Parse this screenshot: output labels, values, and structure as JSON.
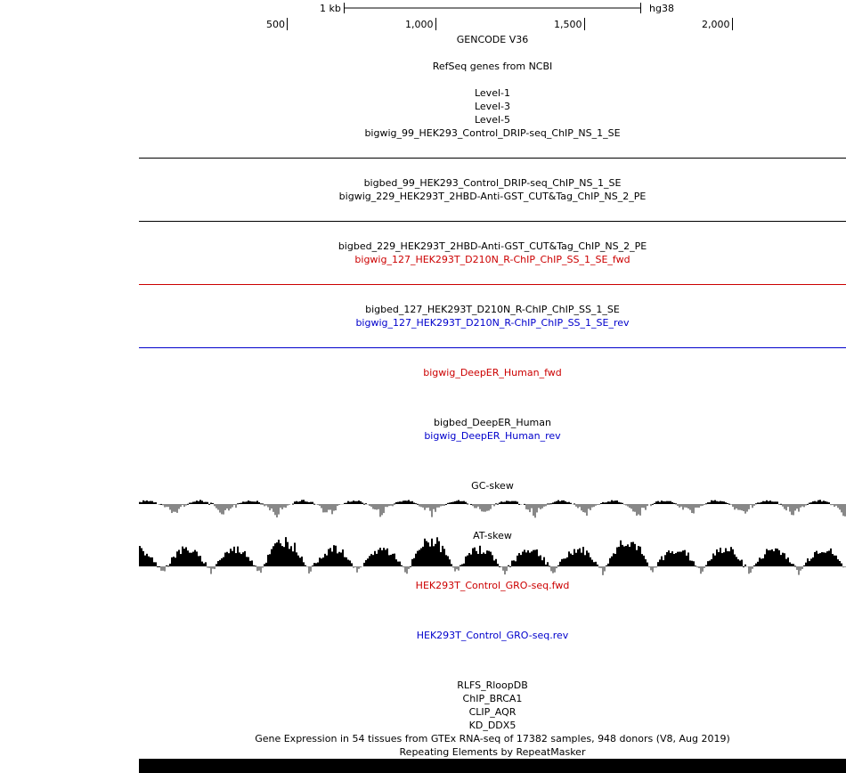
{
  "ruler": {
    "scale_label": "1 kb",
    "assembly": "hg38",
    "ticks": [
      "500",
      "1,000",
      "1,500",
      "2,000"
    ]
  },
  "tracks": [
    {
      "id": "gencode",
      "label": "GENCODE V36"
    },
    {
      "id": "refseq",
      "label": "RefSeq genes from NCBI"
    },
    {
      "id": "level1",
      "label": "Level-1"
    },
    {
      "id": "level3",
      "label": "Level-3"
    },
    {
      "id": "level5",
      "label": "Level-5"
    },
    {
      "id": "bw99",
      "label": "bigwig_99_HEK293_Control_DRIP-seq_ChIP_NS_1_SE"
    },
    {
      "id": "bb99",
      "label": "bigbed_99_HEK293_Control_DRIP-seq_ChIP_NS_1_SE"
    },
    {
      "id": "bw229",
      "label": "bigwig_229_HEK293T_2HBD-Anti-GST_CUT&Tag_ChIP_NS_2_PE"
    },
    {
      "id": "bb229",
      "label": "bigbed_229_HEK293T_2HBD-Anti-GST_CUT&Tag_ChIP_NS_2_PE"
    },
    {
      "id": "bw127f",
      "label": "bigwig_127_HEK293T_D210N_R-ChIP_ChIP_SS_1_SE_fwd",
      "color": "#cc0000"
    },
    {
      "id": "bb127",
      "label": "bigbed_127_HEK293T_D210N_R-ChIP_ChIP_SS_1_SE"
    },
    {
      "id": "bw127r",
      "label": "bigwig_127_HEK293T_D210N_R-ChIP_ChIP_SS_1_SE_rev",
      "color": "#0000cc"
    },
    {
      "id": "deeperf",
      "label": "bigwig_DeepER_Human_fwd",
      "color": "#cc0000"
    },
    {
      "id": "deeperbb",
      "label": "bigbed_DeepER_Human"
    },
    {
      "id": "deeperr",
      "label": "bigwig_DeepER_Human_rev",
      "color": "#0000cc"
    },
    {
      "id": "gcskew",
      "label": "GC-skew"
    },
    {
      "id": "atskew",
      "label": "AT-skew"
    },
    {
      "id": "grof",
      "label": "HEK293T_Control_GRO-seq.fwd",
      "color": "#cc0000"
    },
    {
      "id": "gror",
      "label": "HEK293T_Control_GRO-seq.rev",
      "color": "#0000cc"
    },
    {
      "id": "rlfs",
      "label": "RLFS_RloopDB"
    },
    {
      "id": "brca1",
      "label": "ChIP_BRCA1"
    },
    {
      "id": "aqr",
      "label": "CLIP_AQR"
    },
    {
      "id": "ddx5",
      "label": "KD_DDX5"
    },
    {
      "id": "gtex",
      "label": "Gene Expression in 54 tissues from GTEx RNA-seq of 17382 samples, 948 donors (V8, Aug 2019)"
    },
    {
      "id": "rmsk",
      "label": "Repeating Elements by RepeatMasker"
    }
  ],
  "colors": {
    "black_baseline": "#000000",
    "fwd_red": "#cc0000",
    "rev_blue": "#0000cc",
    "skew_pos": "#000000",
    "skew_neg": "#888888"
  },
  "gc_skew_peaks": [
    0,
    1,
    0,
    0,
    1,
    0,
    0,
    1,
    0,
    0,
    1,
    0,
    1
  ],
  "at_skew_peaks": [
    2,
    2,
    2,
    3,
    2,
    2,
    3,
    2,
    2,
    2,
    3,
    2,
    2
  ]
}
